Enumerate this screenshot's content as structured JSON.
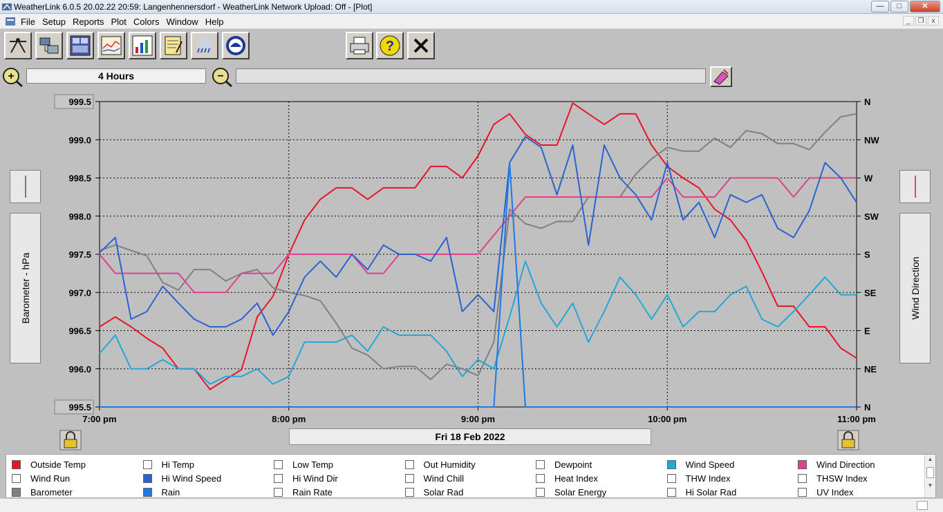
{
  "window": {
    "title": "WeatherLink 6.0.5  20.02.22  20:59: Langenhennersdorf - WeatherLink Network Upload: Off - [Plot]",
    "minimize": "—",
    "maximize": "□",
    "close": "✕"
  },
  "menu": {
    "items": [
      {
        "label": "File"
      },
      {
        "label": "Setup"
      },
      {
        "label": "Reports"
      },
      {
        "label": "Plot"
      },
      {
        "label": "Colors"
      },
      {
        "label": "Window"
      },
      {
        "label": "Help"
      }
    ],
    "mdi_min": "_",
    "mdi_restore": "❐",
    "mdi_close": "x"
  },
  "toolbar": {
    "icons": [
      "station-icon",
      "download-icon",
      "bulletin-icon",
      "strip-chart-icon",
      "plot-icon",
      "notes-icon",
      "weather-icon",
      "noaa-icon"
    ],
    "right_icons": [
      "print-icon",
      "help-icon",
      "close-icon"
    ]
  },
  "range": {
    "label": "4 Hours",
    "zoom_in": "+",
    "zoom_out": "−"
  },
  "chart": {
    "left_axis_label": "Barometer - hPa",
    "right_axis_label": "Wind Direction",
    "date_label": "Fri 18 Feb 2022",
    "left_top_box": "999.5",
    "left_bottom_box": "995.5"
  },
  "chart_data": {
    "type": "line",
    "x_ticks": [
      "7:00 pm",
      "8:00 pm",
      "9:00 pm",
      "10:00 pm",
      "11:00 pm"
    ],
    "xlim_minutes": [
      0,
      240
    ],
    "ylim": [
      995.5,
      999.5
    ],
    "y_ticks": [
      "999.5",
      "999.0",
      "998.5",
      "998.0",
      "997.5",
      "997.0",
      "996.5",
      "996.0",
      "995.5"
    ],
    "y_right_ticks": [
      "N",
      "NW",
      "W",
      "SW",
      "S",
      "SE",
      "E",
      "NE",
      "N"
    ],
    "grid": true,
    "series": [
      {
        "name": "Outside Temp",
        "color": "#e8142a",
        "values": [
          996.55,
          996.68,
          996.55,
          996.4,
          996.27,
          996.0,
          996.0,
          995.73,
          995.86,
          995.99,
          996.68,
          996.95,
          997.5,
          997.95,
          998.22,
          998.37,
          998.37,
          998.22,
          998.37,
          998.37,
          998.37,
          998.65,
          998.65,
          998.5,
          998.79,
          999.2,
          999.34,
          999.07,
          998.93,
          998.93,
          999.48,
          999.34,
          999.2,
          999.34,
          999.34,
          998.93,
          998.65,
          998.5,
          998.37,
          998.09,
          997.95,
          997.68,
          997.27,
          996.82,
          996.82,
          996.55,
          996.55,
          996.27,
          996.14
        ]
      },
      {
        "name": "Barometer",
        "color": "#808080",
        "values": [
          997.55,
          997.62,
          997.55,
          997.48,
          997.13,
          997.03,
          997.3,
          997.3,
          997.15,
          997.25,
          997.3,
          997.06,
          997.0,
          996.96,
          996.89,
          996.6,
          996.27,
          996.18,
          996.0,
          996.03,
          996.03,
          995.86,
          996.06,
          996.0,
          995.91,
          996.35,
          998.09,
          997.9,
          997.84,
          997.93,
          997.93,
          998.25,
          998.25,
          998.25,
          998.55,
          998.75,
          998.9,
          998.85,
          998.85,
          999.02,
          998.9,
          999.12,
          999.08,
          998.95,
          998.95,
          998.87,
          999.1,
          999.3,
          999.34
        ]
      },
      {
        "name": "Wind Direction",
        "color": "#e0408c",
        "values": [
          997.5,
          997.25,
          997.25,
          997.25,
          997.25,
          997.25,
          997.0,
          997.0,
          997.0,
          997.25,
          997.25,
          997.25,
          997.5,
          997.5,
          997.5,
          997.5,
          997.5,
          997.25,
          997.25,
          997.5,
          997.5,
          997.5,
          997.5,
          997.5,
          997.5,
          997.75,
          998.0,
          998.25,
          998.25,
          998.25,
          998.25,
          998.25,
          998.25,
          998.25,
          998.25,
          998.25,
          998.5,
          998.25,
          998.25,
          998.25,
          998.5,
          998.5,
          998.5,
          998.5,
          998.25,
          998.5,
          998.5,
          998.5,
          998.5
        ]
      },
      {
        "name": "Hi Wind Speed",
        "color": "#2a62d0",
        "values": [
          997.52,
          997.72,
          996.65,
          996.75,
          997.08,
          996.86,
          996.65,
          996.55,
          996.55,
          996.65,
          996.86,
          996.44,
          996.75,
          997.2,
          997.41,
          997.2,
          997.5,
          997.3,
          997.62,
          997.5,
          997.5,
          997.41,
          997.72,
          996.75,
          996.97,
          996.75,
          998.7,
          999.04,
          998.9,
          998.28,
          998.93,
          997.62,
          998.93,
          998.5,
          998.28,
          997.95,
          998.7,
          997.95,
          998.18,
          997.72,
          998.28,
          998.18,
          998.28,
          997.84,
          997.72,
          998.07,
          998.7,
          998.5,
          998.18
        ]
      },
      {
        "name": "Wind Speed",
        "color": "#22a8d8",
        "values": [
          996.2,
          996.44,
          996.0,
          996.0,
          996.12,
          996.0,
          996.0,
          995.8,
          995.9,
          995.9,
          996.0,
          995.8,
          995.9,
          996.35,
          996.35,
          996.35,
          996.44,
          996.23,
          996.55,
          996.44,
          996.44,
          996.44,
          996.23,
          995.9,
          996.12,
          996.0,
          996.68,
          997.41,
          996.86,
          996.55,
          996.86,
          996.35,
          996.75,
          997.2,
          996.97,
          996.65,
          996.97,
          996.55,
          996.75,
          996.75,
          996.97,
          997.08,
          996.65,
          996.55,
          996.75,
          996.97,
          997.2,
          996.97,
          996.97
        ]
      },
      {
        "name": "Rain",
        "color": "#1e78e6",
        "x_minutes": [
          0,
          125,
          125,
          130,
          135,
          135,
          240
        ],
        "values": [
          995.5,
          995.5,
          995.5,
          998.7,
          995.5,
          995.5,
          995.5
        ]
      }
    ]
  },
  "legend": {
    "items": [
      {
        "label": "Outside Temp",
        "checked": true,
        "color": "#e8142a"
      },
      {
        "label": "Hi Temp",
        "checked": false,
        "color": ""
      },
      {
        "label": "Low Temp",
        "checked": false,
        "color": ""
      },
      {
        "label": "Out Humidity",
        "checked": false,
        "color": ""
      },
      {
        "label": "Dewpoint",
        "checked": false,
        "color": ""
      },
      {
        "label": "Wind Speed",
        "checked": true,
        "color": "#22a8d8"
      },
      {
        "label": "Wind Direction",
        "checked": true,
        "color": "#e0408c"
      },
      {
        "label": "Wind Run",
        "checked": false,
        "color": ""
      },
      {
        "label": "Hi Wind Speed",
        "checked": true,
        "color": "#2a62d0"
      },
      {
        "label": "Hi Wind Dir",
        "checked": false,
        "color": ""
      },
      {
        "label": "Wind Chill",
        "checked": false,
        "color": ""
      },
      {
        "label": "Heat Index",
        "checked": false,
        "color": ""
      },
      {
        "label": "THW Index",
        "checked": false,
        "color": ""
      },
      {
        "label": "THSW Index",
        "checked": false,
        "color": ""
      },
      {
        "label": "Barometer",
        "checked": true,
        "color": "#808080"
      },
      {
        "label": "Rain",
        "checked": true,
        "color": "#1e78e6"
      },
      {
        "label": "Rain Rate",
        "checked": false,
        "color": ""
      },
      {
        "label": "Solar Rad",
        "checked": false,
        "color": ""
      },
      {
        "label": "Solar Energy",
        "checked": false,
        "color": ""
      },
      {
        "label": "Hi Solar Rad",
        "checked": false,
        "color": ""
      },
      {
        "label": "UV Index",
        "checked": false,
        "color": ""
      }
    ]
  }
}
